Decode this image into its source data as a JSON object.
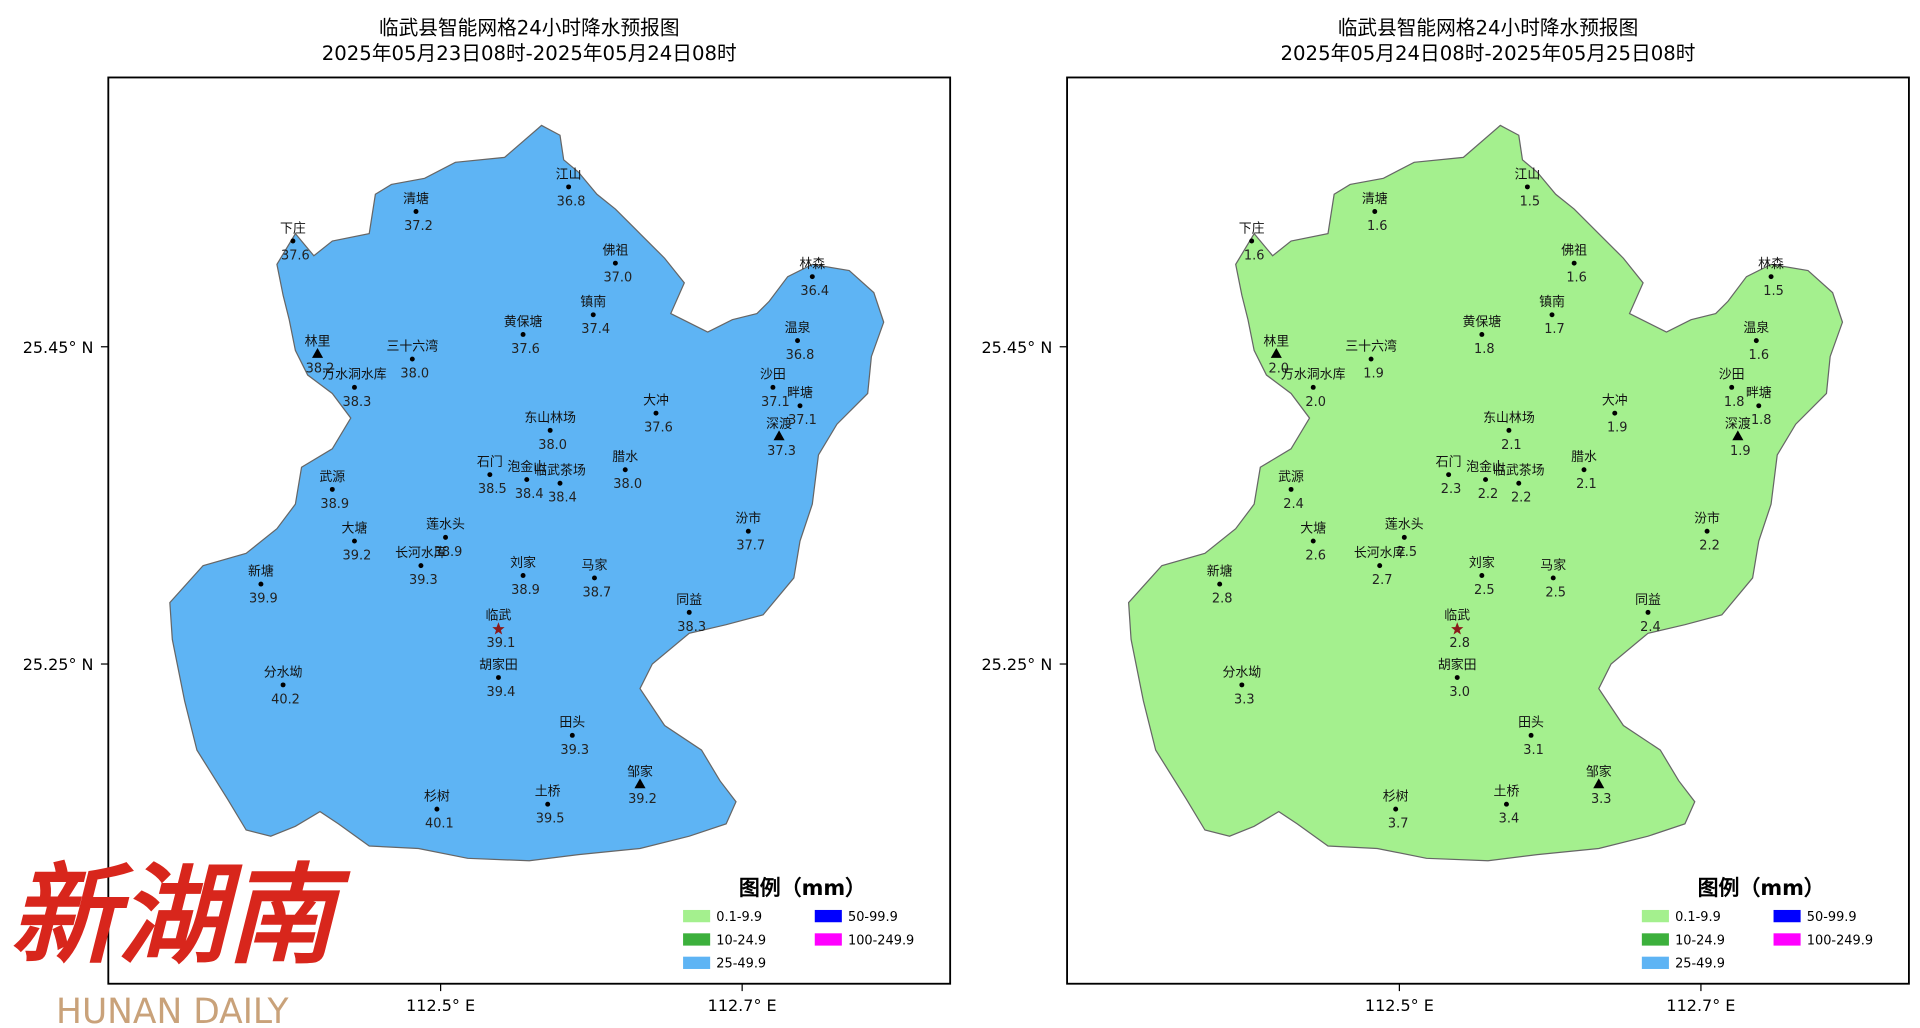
{
  "stations": [
    "清塘",
    "江山",
    "下庄",
    "佛祖",
    "林森",
    "镇南",
    "黄保塘",
    "温泉",
    "林里",
    "三十六湾",
    "万水洞水库",
    "沙田",
    "畔塘",
    "大冲",
    "深渡",
    "东山林场",
    "石门",
    "泡金山",
    "临武茶场",
    "腊水",
    "武源",
    "汾市",
    "大塘",
    "莲水头",
    "长河水库",
    "刘家",
    "马家",
    "新塘",
    "同益",
    "临武",
    "胡家田",
    "分水坳",
    "田头",
    "邹家",
    "杉树",
    "土桥"
  ],
  "maps": [
    {
      "title": "临武县智能网格24小时降水预报图",
      "subtitle": "2025年05月23日08时-2025年05月24日08时",
      "fill": "#5eb4f4",
      "values": [
        "37.2",
        "36.8",
        "37.6",
        "37.0",
        "36.4",
        "37.4",
        "37.6",
        "36.8",
        "38.2",
        "38.0",
        "38.3",
        "37.1",
        "37.1",
        "37.6",
        "37.3",
        "38.0",
        "38.5",
        "38.4",
        "38.4",
        "38.0",
        "38.9",
        "37.7",
        "39.2",
        "38.9",
        "39.3",
        "38.9",
        "38.7",
        "39.9",
        "38.3",
        "39.1",
        "39.4",
        "40.2",
        "39.3",
        "39.2",
        "40.1",
        "39.5"
      ]
    },
    {
      "title": "临武县智能网格24小时降水预报图",
      "subtitle": "2025年05月24日08时-2025年05月25日08时",
      "fill": "#a4f08e",
      "values": [
        "1.6",
        "1.5",
        "1.6",
        "1.6",
        "1.5",
        "1.7",
        "1.8",
        "1.6",
        "2.0",
        "1.9",
        "2.0",
        "1.8",
        "1.8",
        "1.9",
        "1.9",
        "2.1",
        "2.3",
        "2.2",
        "2.2",
        "2.1",
        "2.4",
        "2.2",
        "2.6",
        "2.5",
        "2.7",
        "2.5",
        "2.5",
        "2.8",
        "2.4",
        "2.8",
        "3.0",
        "3.3",
        "3.1",
        "3.3",
        "3.7",
        "3.4"
      ]
    }
  ],
  "axis_labels": {
    "lat": [
      "25.45° N",
      "25.25° N"
    ],
    "lon": [
      "112.5° E",
      "112.7° E"
    ]
  },
  "legend": {
    "title": "图例（mm）",
    "items": [
      {
        "label": "0.1-9.9",
        "color": "#a4f08e"
      },
      {
        "label": "10-24.9",
        "color": "#3cb03c"
      },
      {
        "label": "25-49.9",
        "color": "#5eb4f4"
      },
      {
        "label": "50-99.9",
        "color": "#0000ff"
      },
      {
        "label": "100-249.9",
        "color": "#ff00ff"
      }
    ]
  },
  "watermark": {
    "logo": "新湖南",
    "brand": "HUNAN DAILY"
  }
}
